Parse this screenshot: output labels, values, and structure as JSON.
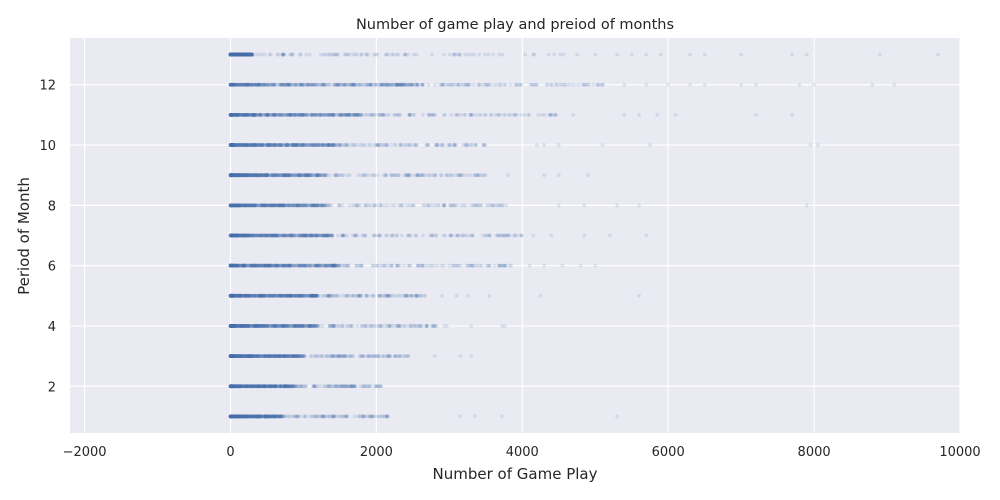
{
  "chart_data": {
    "type": "scatter",
    "title": "Number of game play and preiod of months",
    "xlabel": "Number of Game Play",
    "ylabel": "Period of Month",
    "xlim": [
      -2200,
      10000
    ],
    "ylim": [
      0.45,
      13.55
    ],
    "xticks": [
      -2000,
      0,
      2000,
      4000,
      6000,
      8000,
      10000
    ],
    "yticks": [
      2,
      4,
      6,
      8,
      10,
      12
    ],
    "grid": true,
    "legend": "none",
    "colors": {
      "background": "#eaeaf2",
      "grid": "#ffffff",
      "point": "#4c72b0"
    },
    "point_alpha": 0.15,
    "series": [
      {
        "month": 1,
        "dense_max": 700,
        "sparse_max": 2200,
        "outliers": [
          3150,
          3350,
          3720,
          5300
        ]
      },
      {
        "month": 2,
        "dense_max": 900,
        "sparse_max": 2100,
        "outliers": []
      },
      {
        "month": 3,
        "dense_max": 1000,
        "sparse_max": 2450,
        "outliers": [
          2800,
          3150,
          3300
        ]
      },
      {
        "month": 4,
        "dense_max": 1200,
        "sparse_max": 3000,
        "outliers": [
          3300,
          3720,
          3760
        ]
      },
      {
        "month": 5,
        "dense_max": 1200,
        "sparse_max": 2700,
        "outliers": [
          2900,
          3100,
          3250,
          3550,
          4250,
          5600
        ]
      },
      {
        "month": 6,
        "dense_max": 1500,
        "sparse_max": 3900,
        "outliers": [
          4100,
          4300,
          4550,
          4800,
          5000
        ]
      },
      {
        "month": 7,
        "dense_max": 1400,
        "sparse_max": 4000,
        "outliers": [
          4150,
          4400,
          4850,
          5200,
          5700
        ]
      },
      {
        "month": 8,
        "dense_max": 1300,
        "sparse_max": 3800,
        "outliers": [
          4500,
          4850,
          5300,
          5600,
          7900
        ]
      },
      {
        "month": 9,
        "dense_max": 1300,
        "sparse_max": 3500,
        "outliers": [
          3800,
          4300,
          4500,
          4900
        ]
      },
      {
        "month": 10,
        "dense_max": 1500,
        "sparse_max": 3500,
        "outliers": [
          4200,
          4300,
          4500,
          5100,
          5750,
          7950,
          8050
        ]
      },
      {
        "month": 11,
        "dense_max": 1800,
        "sparse_max": 4500,
        "outliers": [
          4700,
          5400,
          5600,
          5850,
          6100,
          7200,
          7700
        ]
      },
      {
        "month": 12,
        "dense_max": 2600,
        "sparse_max": 5200,
        "outliers": [
          5400,
          5700,
          6000,
          6300,
          6500,
          7000,
          7200,
          7800,
          8000,
          8800,
          9100
        ]
      },
      {
        "month": 13,
        "dense_max": 300,
        "sparse_max": 4800,
        "outliers": [
          5000,
          5300,
          5500,
          5700,
          5900,
          6300,
          6500,
          7000,
          7700,
          7900,
          8900,
          9700
        ]
      }
    ]
  }
}
